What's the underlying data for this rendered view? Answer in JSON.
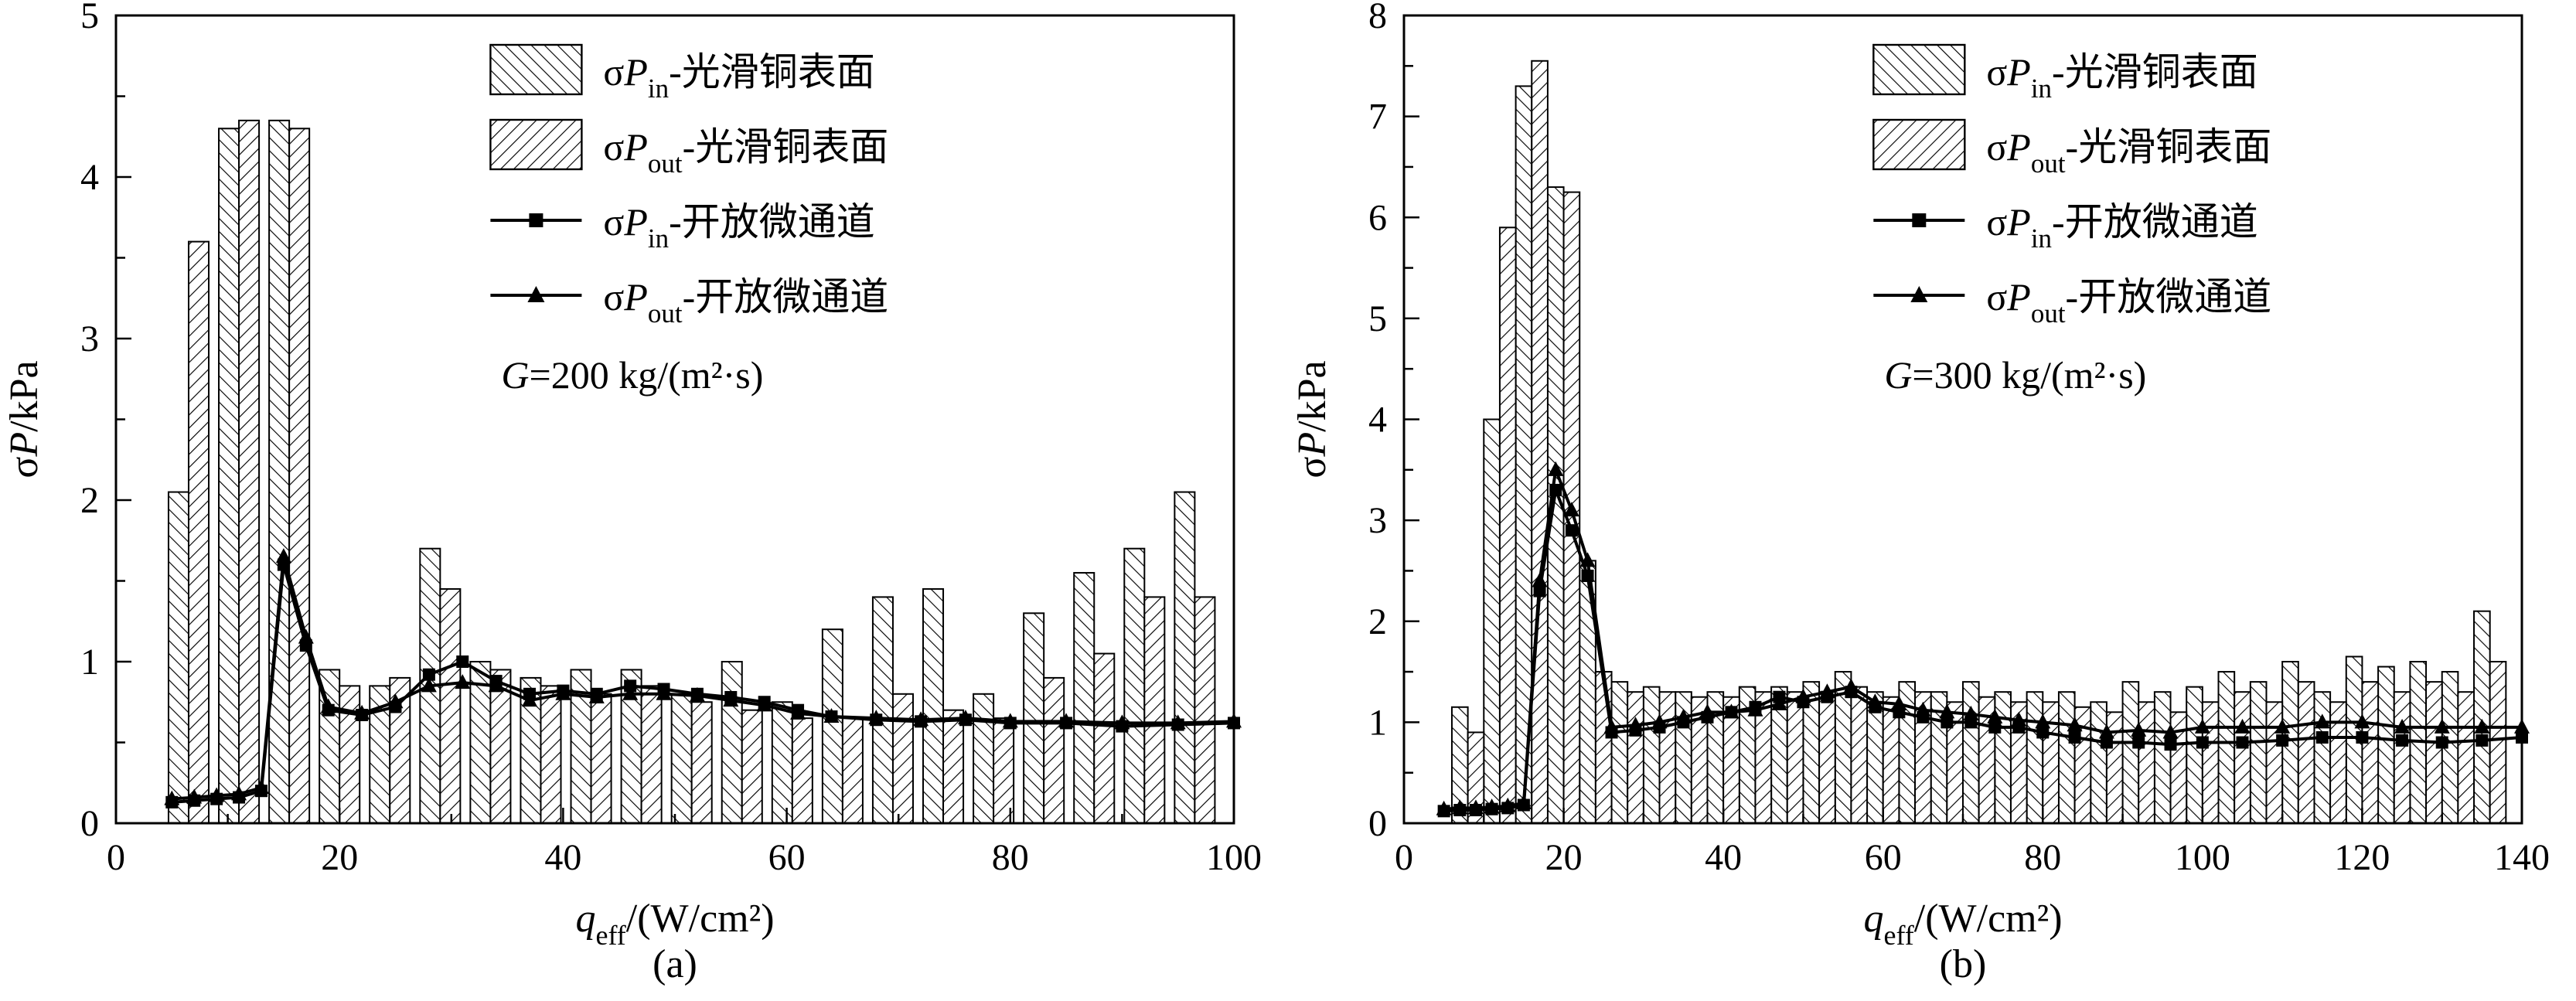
{
  "figure": {
    "background": "#ffffff",
    "ink": "#000000"
  },
  "chart_data": [
    {
      "id": "a",
      "type": "bar+line",
      "caption": "(a)",
      "xlim": [
        0,
        100
      ],
      "ylim": [
        0,
        5
      ],
      "xticks": [
        0,
        20,
        40,
        60,
        80,
        100
      ],
      "yticks": [
        0,
        1,
        2,
        3,
        4,
        5
      ],
      "xminor": 10,
      "yminor": 0.5,
      "grid": false,
      "legend_position": "upper-right-inside",
      "legend_x_frac": 0.335,
      "bar_width": 1.8,
      "xlabel": [
        {
          "t": "q",
          "style": "italic"
        },
        {
          "t": "eff",
          "pos": "sub"
        },
        {
          "t": "/(W/cm²)"
        }
      ],
      "ylabel": [
        {
          "t": "σ"
        },
        {
          "t": "P",
          "style": "italic"
        },
        {
          "t": "/kPa"
        }
      ],
      "annotation": [
        {
          "t": "G",
          "style": "italic"
        },
        {
          "t": "=200 kg/(m²·s)"
        }
      ],
      "bars": {
        "x": [
          6.5,
          11,
          15.5,
          20,
          24.5,
          29,
          33.5,
          38,
          42.5,
          47,
          51.5,
          56,
          60.5,
          65,
          69.5,
          74,
          78.5,
          83,
          87.5,
          92,
          96.5
        ],
        "series": [
          {
            "name": "σP_in-光滑铜表面",
            "hatch": "fwd",
            "values": [
              2.05,
              4.3,
              4.35,
              0.95,
              0.85,
              1.7,
              1.0,
              0.9,
              0.95,
              0.95,
              0.8,
              1.0,
              0.75,
              1.2,
              1.4,
              1.45,
              0.8,
              1.3,
              1.55,
              1.7,
              2.05
            ]
          },
          {
            "name": "σP_out-光滑铜表面",
            "hatch": "bwd",
            "values": [
              3.6,
              4.35,
              4.3,
              0.85,
              0.9,
              1.45,
              0.95,
              0.85,
              0.8,
              0.85,
              0.75,
              0.7,
              0.65,
              0.65,
              0.8,
              0.7,
              0.65,
              0.9,
              1.05,
              1.4,
              1.4
            ]
          }
        ]
      },
      "lines": [
        {
          "name": "σP_in-开放微通道",
          "marker": "square",
          "x": [
            5,
            7,
            9,
            11,
            13,
            15,
            17,
            19,
            22,
            25,
            28,
            31,
            34,
            37,
            40,
            43,
            46,
            49,
            52,
            55,
            58,
            61,
            64,
            68,
            72,
            76,
            80,
            85,
            90,
            95,
            100
          ],
          "y": [
            0.13,
            0.14,
            0.15,
            0.16,
            0.2,
            1.6,
            1.1,
            0.7,
            0.67,
            0.72,
            0.92,
            1.0,
            0.88,
            0.8,
            0.82,
            0.8,
            0.85,
            0.83,
            0.8,
            0.78,
            0.75,
            0.7,
            0.66,
            0.64,
            0.63,
            0.64,
            0.62,
            0.62,
            0.6,
            0.61,
            0.62
          ]
        },
        {
          "name": "σP_out-开放微通道",
          "marker": "triangle",
          "x": [
            5,
            7,
            9,
            11,
            13,
            15,
            17,
            19,
            22,
            25,
            28,
            31,
            34,
            37,
            40,
            43,
            46,
            49,
            52,
            55,
            58,
            61,
            64,
            68,
            72,
            76,
            80,
            85,
            90,
            95,
            100
          ],
          "y": [
            0.15,
            0.16,
            0.17,
            0.18,
            0.22,
            1.65,
            1.15,
            0.72,
            0.68,
            0.75,
            0.85,
            0.87,
            0.85,
            0.76,
            0.8,
            0.78,
            0.8,
            0.8,
            0.79,
            0.76,
            0.73,
            0.68,
            0.66,
            0.65,
            0.64,
            0.65,
            0.63,
            0.63,
            0.62,
            0.62,
            0.63
          ]
        }
      ],
      "legend": [
        {
          "swatch": "hatch-fwd",
          "parts": [
            {
              "t": "σ"
            },
            {
              "t": "P",
              "style": "italic"
            },
            {
              "t": "in",
              "pos": "sub"
            },
            {
              "t": "-光滑铜表面"
            }
          ]
        },
        {
          "swatch": "hatch-bwd",
          "parts": [
            {
              "t": "σ"
            },
            {
              "t": "P",
              "style": "italic"
            },
            {
              "t": "out",
              "pos": "sub"
            },
            {
              "t": "-光滑铜表面"
            }
          ]
        },
        {
          "swatch": "line-square",
          "parts": [
            {
              "t": "σ"
            },
            {
              "t": "P",
              "style": "italic"
            },
            {
              "t": "in",
              "pos": "sub"
            },
            {
              "t": "-开放微通道"
            }
          ]
        },
        {
          "swatch": "line-triangle",
          "parts": [
            {
              "t": "σ"
            },
            {
              "t": "P",
              "style": "italic"
            },
            {
              "t": "out",
              "pos": "sub"
            },
            {
              "t": "-开放微通道"
            }
          ]
        }
      ]
    },
    {
      "id": "b",
      "type": "bar+line",
      "caption": "(b)",
      "xlim": [
        0,
        140
      ],
      "ylim": [
        0,
        8
      ],
      "xticks": [
        0,
        20,
        40,
        60,
        80,
        100,
        120,
        140
      ],
      "yticks": [
        0,
        1,
        2,
        3,
        4,
        5,
        6,
        7,
        8
      ],
      "xminor": 10,
      "yminor": 0.5,
      "grid": false,
      "legend_position": "upper-right-inside",
      "legend_x_frac": 0.42,
      "bar_width": 2.0,
      "xlabel": [
        {
          "t": "q",
          "style": "italic"
        },
        {
          "t": "eff",
          "pos": "sub"
        },
        {
          "t": "/(W/cm²)"
        }
      ],
      "ylabel": [
        {
          "t": "σ"
        },
        {
          "t": "P",
          "style": "italic"
        },
        {
          "t": "/kPa"
        }
      ],
      "annotation": [
        {
          "t": "G",
          "style": "italic"
        },
        {
          "t": "=300 kg/(m²·s)"
        }
      ],
      "bars": {
        "x": [
          8,
          12,
          16,
          20,
          24,
          28,
          32,
          36,
          40,
          44,
          48,
          52,
          56,
          60,
          64,
          68,
          72,
          76,
          80,
          84,
          88,
          92,
          96,
          100,
          104,
          108,
          112,
          116,
          120,
          124,
          128,
          132,
          136
        ],
        "series": [
          {
            "name": "σP_in-光滑铜表面",
            "hatch": "fwd",
            "values": [
              1.15,
              4.0,
              7.3,
              6.3,
              2.6,
              1.4,
              1.35,
              1.3,
              1.3,
              1.35,
              1.35,
              1.4,
              1.5,
              1.3,
              1.4,
              1.3,
              1.4,
              1.3,
              1.3,
              1.3,
              1.2,
              1.4,
              1.3,
              1.35,
              1.5,
              1.4,
              1.6,
              1.3,
              1.65,
              1.55,
              1.6,
              1.5,
              2.1
            ]
          },
          {
            "name": "σP_out-光滑铜表面",
            "hatch": "bwd",
            "values": [
              0.9,
              5.9,
              7.55,
              6.25,
              1.5,
              1.3,
              1.3,
              1.25,
              1.25,
              1.3,
              1.3,
              1.3,
              1.35,
              1.25,
              1.3,
              1.2,
              1.25,
              1.2,
              1.2,
              1.15,
              1.1,
              1.2,
              1.1,
              1.2,
              1.3,
              1.2,
              1.4,
              1.2,
              1.4,
              1.3,
              1.4,
              1.3,
              1.6
            ]
          }
        ]
      },
      "lines": [
        {
          "name": "σP_in-开放微通道",
          "marker": "square",
          "x": [
            5,
            7,
            9,
            11,
            13,
            15,
            17,
            19,
            21,
            23,
            26,
            29,
            32,
            35,
            38,
            41,
            44,
            47,
            50,
            53,
            56,
            59,
            62,
            65,
            68,
            71,
            74,
            77,
            80,
            84,
            88,
            92,
            96,
            100,
            105,
            110,
            115,
            120,
            125,
            130,
            135,
            140
          ],
          "y": [
            0.12,
            0.13,
            0.13,
            0.14,
            0.15,
            0.18,
            2.3,
            3.3,
            2.9,
            2.45,
            0.9,
            0.92,
            0.95,
            1.0,
            1.05,
            1.1,
            1.15,
            1.25,
            1.2,
            1.25,
            1.3,
            1.15,
            1.1,
            1.05,
            1.0,
            1.0,
            0.95,
            0.95,
            0.9,
            0.85,
            0.8,
            0.8,
            0.78,
            0.8,
            0.8,
            0.82,
            0.85,
            0.85,
            0.82,
            0.8,
            0.82,
            0.85
          ]
        },
        {
          "name": "σP_out-开放微通道",
          "marker": "triangle",
          "x": [
            5,
            7,
            9,
            11,
            13,
            15,
            17,
            19,
            21,
            23,
            26,
            29,
            32,
            35,
            38,
            41,
            44,
            47,
            50,
            53,
            56,
            59,
            62,
            65,
            68,
            71,
            74,
            77,
            80,
            84,
            88,
            92,
            96,
            100,
            105,
            110,
            115,
            120,
            125,
            130,
            135,
            140
          ],
          "y": [
            0.14,
            0.15,
            0.15,
            0.16,
            0.17,
            0.2,
            2.4,
            3.5,
            3.1,
            2.6,
            0.95,
            0.97,
            1.0,
            1.05,
            1.1,
            1.1,
            1.12,
            1.18,
            1.25,
            1.3,
            1.35,
            1.2,
            1.18,
            1.12,
            1.1,
            1.08,
            1.05,
            1.02,
            1.0,
            0.97,
            0.9,
            0.92,
            0.9,
            0.95,
            0.95,
            0.95,
            1.0,
            1.0,
            0.95,
            0.95,
            0.95,
            0.95
          ]
        }
      ],
      "legend": [
        {
          "swatch": "hatch-fwd",
          "parts": [
            {
              "t": "σ"
            },
            {
              "t": "P",
              "style": "italic"
            },
            {
              "t": "in",
              "pos": "sub"
            },
            {
              "t": "-光滑铜表面"
            }
          ]
        },
        {
          "swatch": "hatch-bwd",
          "parts": [
            {
              "t": "σ"
            },
            {
              "t": "P",
              "style": "italic"
            },
            {
              "t": "out",
              "pos": "sub"
            },
            {
              "t": "-光滑铜表面"
            }
          ]
        },
        {
          "swatch": "line-square",
          "parts": [
            {
              "t": "σ"
            },
            {
              "t": "P",
              "style": "italic"
            },
            {
              "t": "in",
              "pos": "sub"
            },
            {
              "t": "-开放微通道"
            }
          ]
        },
        {
          "swatch": "line-triangle",
          "parts": [
            {
              "t": "σ"
            },
            {
              "t": "P",
              "style": "italic"
            },
            {
              "t": "out",
              "pos": "sub"
            },
            {
              "t": "-开放微通道"
            }
          ]
        }
      ]
    }
  ]
}
